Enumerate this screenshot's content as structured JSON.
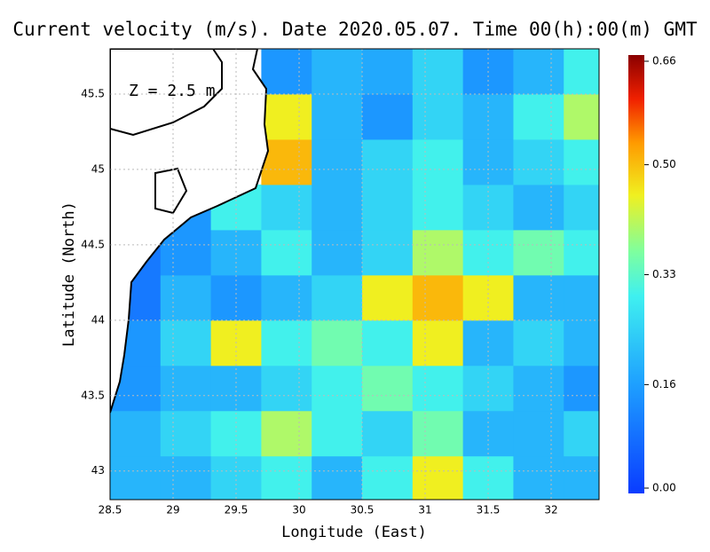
{
  "chart_data": {
    "type": "heatmap",
    "title": "Current velocity (m/s). Date 2020.05.07. Time 00(h):00(m) GMT",
    "annotation": "Z = 2.5 m",
    "x_label": "Longitude (East)",
    "y_label": "Latitude (North)",
    "xlim": [
      28.5,
      32.38
    ],
    "ylim": [
      42.81,
      45.8
    ],
    "xticks": [
      28.5,
      29,
      29.5,
      30,
      30.5,
      31,
      31.5,
      32
    ],
    "yticks": [
      43,
      43.5,
      44,
      44.5,
      45,
      45.5
    ],
    "grid": true,
    "x": [
      28.7,
      29.1,
      29.5,
      29.9,
      30.3,
      30.7,
      31.1,
      31.5,
      31.9,
      32.3
    ],
    "y": [
      42.95,
      43.25,
      43.55,
      43.85,
      44.15,
      44.45,
      44.75,
      45.05,
      45.35,
      45.65
    ],
    "values": [
      [
        0.2,
        0.2,
        0.25,
        0.3,
        0.2,
        0.3,
        0.45,
        0.3,
        0.2,
        0.2
      ],
      [
        0.2,
        0.25,
        0.3,
        0.4,
        0.3,
        0.25,
        0.35,
        0.2,
        0.2,
        0.25
      ],
      [
        0.15,
        0.2,
        0.2,
        0.25,
        0.3,
        0.35,
        0.3,
        0.25,
        0.2,
        0.15
      ],
      [
        0.15,
        0.25,
        0.45,
        0.3,
        0.35,
        0.3,
        0.45,
        0.2,
        0.25,
        0.2
      ],
      [
        0.1,
        0.2,
        0.15,
        0.2,
        0.25,
        0.45,
        0.5,
        0.45,
        0.2,
        0.2
      ],
      [
        0.1,
        0.15,
        0.2,
        0.3,
        0.2,
        0.25,
        0.4,
        0.3,
        0.35,
        0.3
      ],
      [
        null,
        0.15,
        0.3,
        0.25,
        0.2,
        0.25,
        0.3,
        0.25,
        0.2,
        0.25
      ],
      [
        null,
        null,
        null,
        0.5,
        0.2,
        0.25,
        0.3,
        0.2,
        0.25,
        0.3
      ],
      [
        null,
        null,
        null,
        0.45,
        0.2,
        0.15,
        0.25,
        0.2,
        0.3,
        0.4
      ],
      [
        null,
        null,
        null,
        0.15,
        0.2,
        0.18,
        0.25,
        0.15,
        0.2,
        0.3
      ]
    ],
    "colorbar_lim": [
      0,
      0.66
    ],
    "colorbar_ticks": [
      {
        "value": 0,
        "label": "0.00"
      },
      0.16,
      0.33,
      {
        "value": 0.5,
        "label": "0.50"
      },
      0.66
    ]
  }
}
